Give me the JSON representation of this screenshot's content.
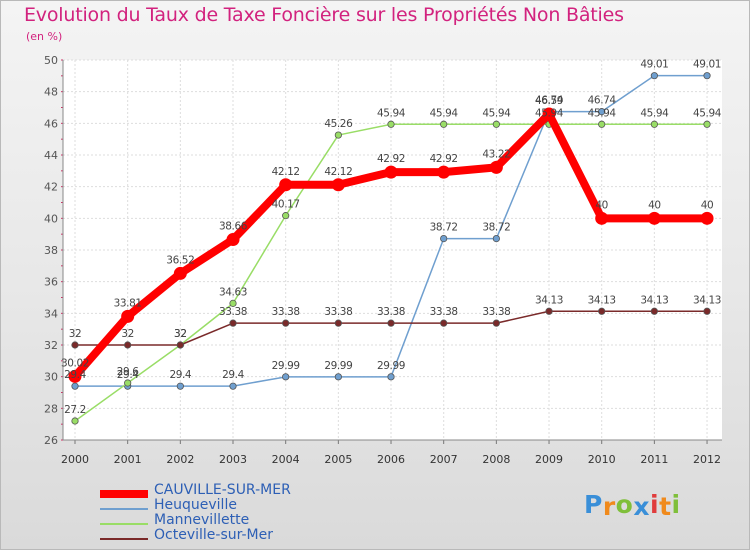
{
  "title": "Evolution du Taux de Taxe Foncière sur les Propriétés Non Bâties",
  "unit_label": "(en %)",
  "logo": {
    "text": "Proxiti",
    "letters": [
      "P",
      "r",
      "o",
      "x",
      "i",
      "t",
      "i"
    ],
    "colors": [
      "#3a8fd8",
      "#f08a1c",
      "#7fbf3a",
      "#3a8fd8",
      "#e03c3c",
      "#f08a1c",
      "#7fbf3a"
    ]
  },
  "chart_data": {
    "type": "line",
    "title": "Evolution du Taux de Taxe Foncière sur les Propriétés Non Bâties",
    "ylabel": "(en %)",
    "xlabel": "",
    "x": [
      "2000",
      "2001",
      "2002",
      "2003",
      "2004",
      "2005",
      "2006",
      "2007",
      "2008",
      "2009",
      "2010",
      "2011",
      "2012"
    ],
    "ylim": [
      26,
      50
    ],
    "yticks": [
      "26",
      "28",
      "30",
      "32",
      "34",
      "36",
      "38",
      "40",
      "42",
      "44",
      "46",
      "48",
      "50"
    ],
    "grid": true,
    "legend": "bottom-left",
    "series": [
      {
        "name": "CAUVILLE-SUR-MER",
        "color": "#ff0000",
        "values": [
          30.02,
          33.81,
          36.52,
          38.66,
          42.12,
          42.12,
          42.92,
          42.92,
          43.22,
          46.59,
          40,
          40,
          40
        ],
        "labels": [
          "30.02",
          "33.81",
          "36.52",
          "38.66",
          "42.12",
          "42.12",
          "42.92",
          "42.92",
          "43.22",
          "46.59",
          "40",
          "40",
          "40"
        ]
      },
      {
        "name": "Heuqueville",
        "color": "#6f9fcf",
        "values": [
          29.4,
          29.4,
          29.4,
          29.4,
          29.99,
          29.99,
          29.99,
          38.72,
          38.72,
          46.74,
          46.74,
          49.01,
          49.01
        ],
        "labels": [
          "29.4",
          "29.4",
          "29.4",
          "29.4",
          "29.99",
          "29.99",
          "29.99",
          "38.72",
          "38.72",
          "46.74",
          "46.74",
          "49.01",
          "49.01"
        ]
      },
      {
        "name": "Mannevillette",
        "color": "#99dd66",
        "values": [
          27.2,
          29.6,
          32.0,
          34.63,
          40.17,
          45.26,
          45.94,
          45.94,
          45.94,
          45.94,
          45.94,
          45.94,
          45.94
        ],
        "labels": [
          "27.2",
          "29.6",
          "32",
          "34.63",
          "40.17",
          "45.26",
          "45.94",
          "45.94",
          "45.94",
          "45.94",
          "45.94",
          "45.94",
          "45.94"
        ]
      },
      {
        "name": "Octeville-sur-Mer",
        "color": "#7a2a2a",
        "values": [
          32,
          32,
          32,
          33.38,
          33.38,
          33.38,
          33.38,
          33.38,
          33.38,
          34.13,
          34.13,
          34.13,
          34.13
        ],
        "labels": [
          "32",
          "32",
          "32",
          "33.38",
          "33.38",
          "33.38",
          "33.38",
          "33.38",
          "33.38",
          "34.13",
          "34.13",
          "34.13",
          "34.13"
        ]
      }
    ]
  }
}
